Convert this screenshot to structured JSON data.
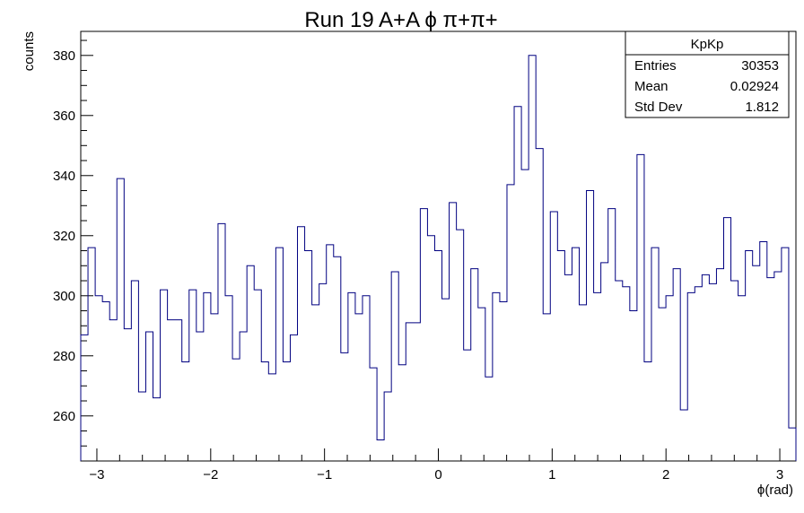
{
  "chart_data": {
    "type": "bar",
    "style": "step-histogram",
    "title": "Run 19 A+A  ϕ π+π+",
    "xlabel": "ϕ(rad)",
    "ylabel": "counts",
    "xlim": [
      -3.14159,
      3.14159
    ],
    "ylim": [
      245,
      388
    ],
    "x_ticks": [
      -3,
      -2,
      -1,
      0,
      1,
      2,
      3
    ],
    "x_tick_labels": [
      "−3",
      "−2",
      "−1",
      "0",
      "1",
      "2",
      "3"
    ],
    "y_ticks": [
      260,
      280,
      300,
      320,
      340,
      360,
      380
    ],
    "y_tick_labels": [
      "260",
      "280",
      "300",
      "320",
      "340",
      "360",
      "380"
    ],
    "grid": false,
    "line_color": "#000080",
    "series": [
      {
        "values": [
          287,
          316,
          300,
          298,
          292,
          339,
          289,
          305,
          268,
          288,
          266,
          302,
          292,
          292,
          278,
          302,
          288,
          301,
          294,
          324,
          300,
          279,
          288,
          310,
          302,
          278,
          274,
          316,
          278,
          287,
          323,
          315,
          297,
          304,
          317,
          313,
          281,
          301,
          294,
          300,
          276,
          252,
          268,
          308,
          277,
          291,
          291,
          329,
          320,
          315,
          299,
          331,
          322,
          282,
          309,
          296,
          273,
          301,
          298,
          337,
          363,
          342,
          380,
          349,
          294,
          328,
          315,
          307,
          316,
          297,
          335,
          301,
          311,
          329,
          305,
          303,
          295,
          347,
          278,
          316,
          296,
          300,
          309,
          262,
          301,
          303,
          307,
          304,
          309,
          326,
          305,
          300,
          315,
          310,
          318,
          306,
          308,
          316,
          256
        ]
      }
    ],
    "stats_box": {
      "name": "KpKp",
      "rows": [
        {
          "label": "Entries",
          "value": "30353"
        },
        {
          "label": "Mean",
          "value": "0.02924"
        },
        {
          "label": "Std Dev",
          "value": "1.812"
        }
      ]
    }
  }
}
